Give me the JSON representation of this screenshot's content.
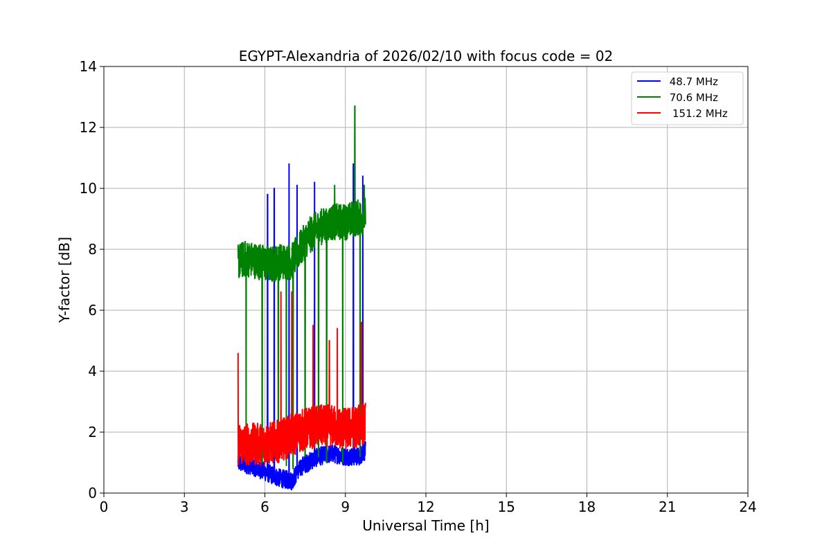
{
  "chart_data": {
    "type": "line",
    "title": "EGYPT-Alexandria of 2026/02/10 with focus code = 02",
    "xlabel": "Universal Time [h]",
    "ylabel": "Y-factor [dB]",
    "xlim": [
      0,
      24
    ],
    "ylim": [
      0,
      14
    ],
    "xticks": [
      0,
      3,
      6,
      9,
      12,
      15,
      18,
      21,
      24
    ],
    "yticks": [
      0,
      2,
      4,
      6,
      8,
      10,
      12,
      14
    ],
    "grid": true,
    "legend_position": "top-right",
    "x_range_data": [
      5.0,
      9.75
    ],
    "series": [
      {
        "name": " 48.7 MHz",
        "color": "#0000ff",
        "baseline": [
          [
            5.0,
            1.0
          ],
          [
            5.5,
            0.9
          ],
          [
            6.0,
            0.7
          ],
          [
            6.5,
            0.5
          ],
          [
            7.0,
            0.4
          ],
          [
            7.4,
            0.9
          ],
          [
            8.0,
            1.2
          ],
          [
            8.5,
            1.3
          ],
          [
            9.0,
            1.2
          ],
          [
            9.5,
            1.2
          ],
          [
            9.75,
            1.4
          ]
        ],
        "spread": 0.6,
        "peaks": [
          [
            6.1,
            9.8
          ],
          [
            6.35,
            10.0
          ],
          [
            6.9,
            10.8
          ],
          [
            7.2,
            10.1
          ],
          [
            7.85,
            10.2
          ],
          [
            9.3,
            10.8
          ],
          [
            9.65,
            10.4
          ]
        ]
      },
      {
        "name": " 70.6 MHz",
        "color": "#008000",
        "baseline": [
          [
            5.0,
            7.6
          ],
          [
            5.3,
            7.7
          ],
          [
            5.8,
            7.6
          ],
          [
            6.2,
            7.5
          ],
          [
            6.6,
            7.6
          ],
          [
            7.0,
            7.6
          ],
          [
            7.3,
            8.0
          ],
          [
            7.6,
            8.4
          ],
          [
            8.0,
            8.7
          ],
          [
            8.5,
            8.9
          ],
          [
            9.0,
            8.9
          ],
          [
            9.3,
            9.0
          ],
          [
            9.75,
            9.1
          ]
        ],
        "spread": 1.2,
        "peaks": [
          [
            9.35,
            12.7
          ],
          [
            8.6,
            10.1
          ],
          [
            9.7,
            10.1
          ]
        ],
        "dips": [
          [
            5.3,
            1.3
          ],
          [
            5.9,
            1.0
          ],
          [
            6.5,
            1.0
          ],
          [
            6.8,
            0.9
          ],
          [
            7.05,
            0.8
          ],
          [
            7.5,
            1.2
          ],
          [
            8.0,
            1.2
          ],
          [
            8.3,
            1.0
          ],
          [
            8.9,
            1.0
          ],
          [
            9.55,
            1.2
          ]
        ]
      },
      {
        "name": "151.2 MHz",
        "color": "#ff0000",
        "baseline": [
          [
            5.0,
            1.6
          ],
          [
            5.5,
            1.6
          ],
          [
            6.0,
            1.6
          ],
          [
            6.5,
            1.7
          ],
          [
            7.0,
            1.9
          ],
          [
            7.5,
            2.1
          ],
          [
            8.0,
            2.2
          ],
          [
            8.5,
            2.2
          ],
          [
            9.0,
            2.1
          ],
          [
            9.5,
            2.2
          ],
          [
            9.75,
            2.3
          ]
        ],
        "spread": 1.4,
        "peaks": [
          [
            5.0,
            4.6
          ],
          [
            6.6,
            6.6
          ],
          [
            7.0,
            6.6
          ],
          [
            7.8,
            5.5
          ],
          [
            8.4,
            5.0
          ],
          [
            8.7,
            5.4
          ],
          [
            9.6,
            5.6
          ]
        ]
      }
    ]
  }
}
